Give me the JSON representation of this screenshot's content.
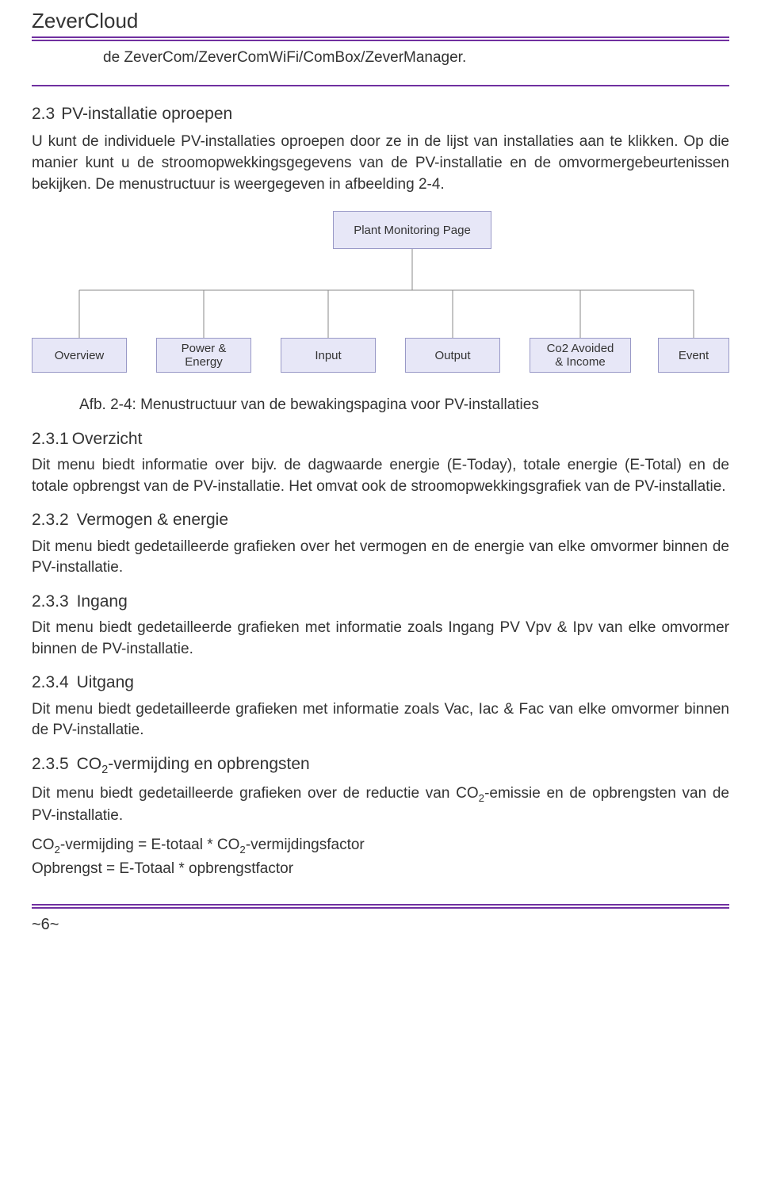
{
  "header": {
    "title": "ZeverCloud"
  },
  "intro": {
    "line": "de ZeverCom/ZeverComWiFi/ComBox/ZeverManager."
  },
  "s23": {
    "num": "2.3",
    "title": "PV-installatie oproepen",
    "p1": "U kunt de individuele PV-installaties oproepen door ze in de lijst van installaties aan te klikken. Op die manier kunt u de stroomopwekkingsgegevens van de PV-installatie en de omvormergebeurtenissen bekijken. De menustructuur is weergegeven in afbeelding 2-4."
  },
  "diagram": {
    "root": "Plant Monitoring Page",
    "leaves": [
      "Overview",
      "Power &\nEnergy",
      "Input",
      "Output",
      "Co2 Avoided\n& Income",
      "Event"
    ],
    "box_bg": "#e7e7f7",
    "box_border": "#9999c7",
    "line_color": "#888"
  },
  "caption": {
    "text": "Afb. 2-4: Menustructuur van de bewakingspagina voor PV-installaties"
  },
  "s231": {
    "num": "2.3.1",
    "title": "Overzicht",
    "p": "Dit menu biedt informatie over bijv. de dagwaarde energie (E-Today), totale energie (E-Total) en de totale opbrengst van de PV-installatie. Het omvat ook de stroomopwekkingsgrafiek van de PV-installatie."
  },
  "s232": {
    "num": "2.3.2",
    "title": "Vermogen & energie",
    "p": "Dit menu biedt gedetailleerde grafieken over het vermogen en de energie van elke omvormer binnen de PV-installatie."
  },
  "s233": {
    "num": "2.3.3",
    "title": "Ingang",
    "p": "Dit menu biedt gedetailleerde grafieken met informatie zoals Ingang PV Vpv & Ipv van elke omvormer binnen de PV-installatie."
  },
  "s234": {
    "num": "2.3.4",
    "title": "Uitgang",
    "p": "Dit menu biedt gedetailleerde grafieken met informatie zoals Vac, Iac & Fac van elke omvormer binnen de PV-installatie."
  },
  "s235": {
    "num": "2.3.5",
    "title_pre": "CO",
    "title_sub": "2",
    "title_post": "-vermijding en opbrengsten",
    "p_pre": "Dit menu biedt gedetailleerde grafieken over de reductie van CO",
    "p_sub": "2",
    "p_post": "-emissie en de opbrengsten van de PV-installatie.",
    "f1_pre": "CO",
    "f1_sub1": "2",
    "f1_mid": "-vermijding = E-totaal * CO",
    "f1_sub2": "2",
    "f1_post": "-vermijdingsfactor",
    "f2": "Opbrengst = E-Totaal * opbrengstfactor"
  },
  "footer": {
    "pagenum": "~6~"
  }
}
